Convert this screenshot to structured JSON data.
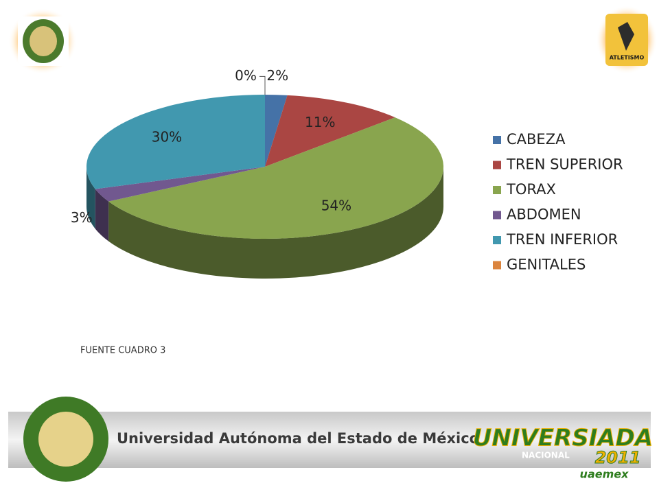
{
  "chart_data": {
    "type": "pie",
    "categories": [
      "CABEZA",
      "TREN SUPERIOR",
      "TORAX",
      "ABDOMEN",
      "TREN INFERIOR",
      "GENITALES"
    ],
    "values": [
      2,
      11,
      54,
      3,
      30,
      0
    ],
    "value_labels": [
      "2%",
      "11%",
      "54%",
      "3%",
      "30%",
      "0%"
    ],
    "colors": [
      "#4572a7",
      "#aa4643",
      "#89a54e",
      "#71588f",
      "#4198af",
      "#db843d"
    ],
    "legend": "right",
    "source": "FUENTE CUADRO 3"
  },
  "banner": {
    "university": "Universidad Autónoma del Estado de México",
    "event": "UNIVERSIADA",
    "event_sub": "NACIONAL",
    "year": "2011",
    "host": "uaemex",
    "sport": "ATLETISMO"
  }
}
